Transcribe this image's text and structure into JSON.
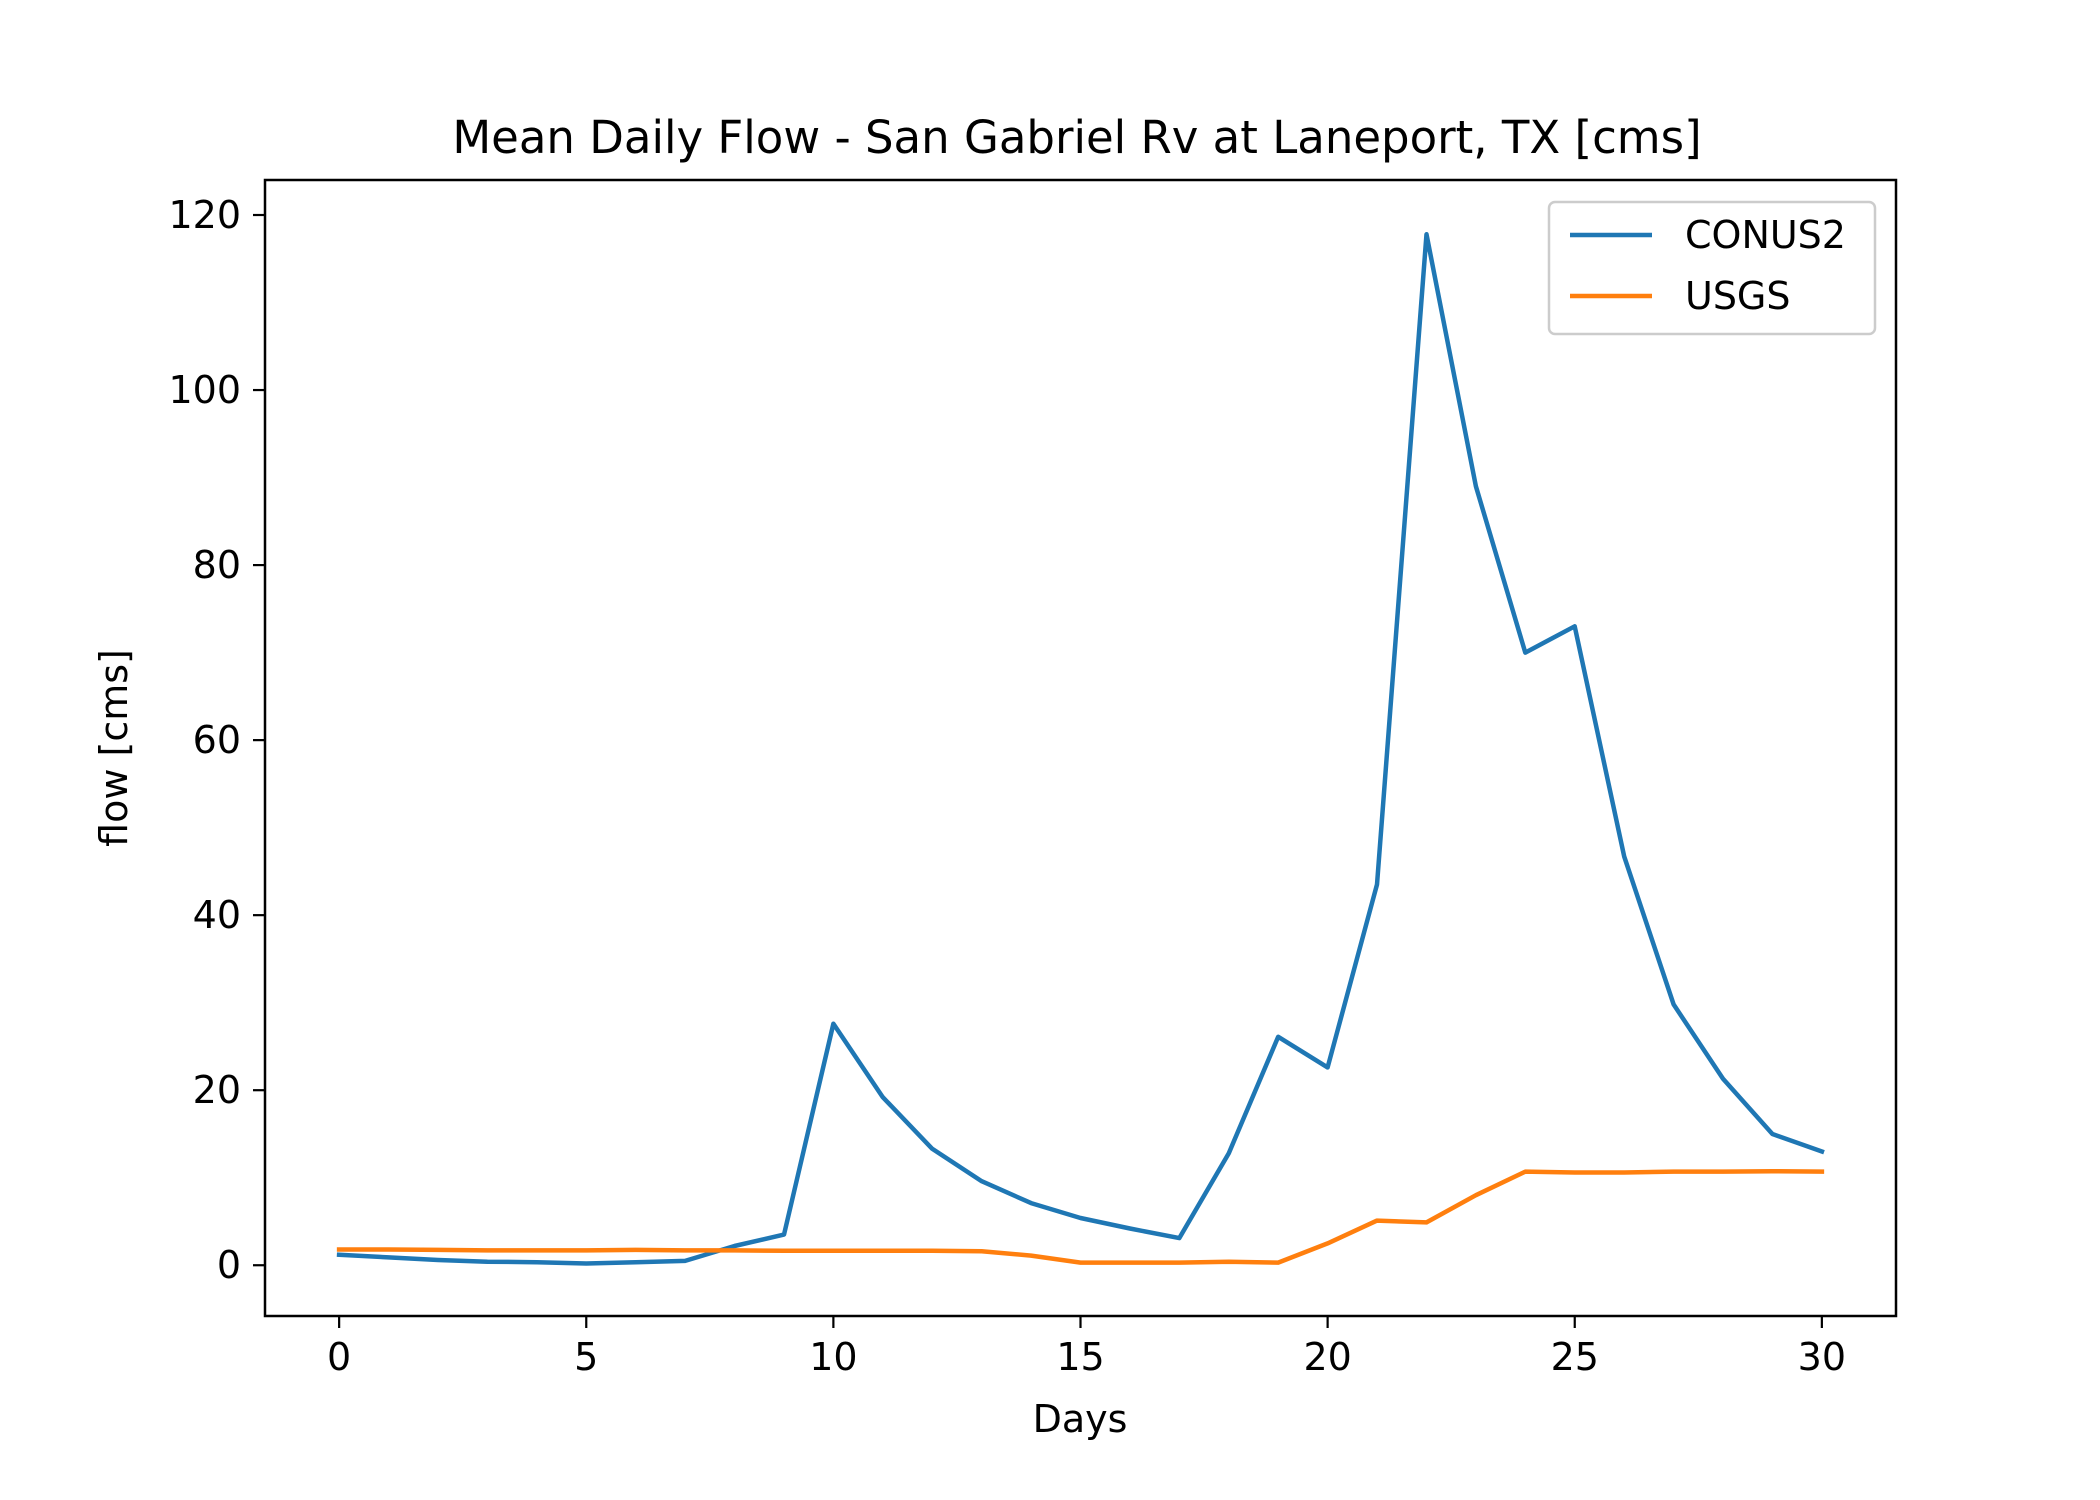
{
  "chart_data": {
    "type": "line",
    "title": "Mean Daily Flow - San Gabriel Rv at Laneport, TX [cms]",
    "xlabel": "Days",
    "ylabel": "flow [cms]",
    "xlim": [
      -1.5,
      31.5
    ],
    "ylim": [
      -5.8,
      124
    ],
    "xticks": [
      0,
      5,
      10,
      15,
      20,
      25,
      30
    ],
    "xtick_labels": [
      "0",
      "5",
      "10",
      "15",
      "20",
      "25",
      "30"
    ],
    "yticks": [
      0,
      20,
      40,
      60,
      80,
      100,
      120
    ],
    "ytick_labels": [
      "0",
      "20",
      "40",
      "60",
      "80",
      "100",
      "120"
    ],
    "grid": false,
    "legend_position": "top-right",
    "x": [
      0,
      1,
      2,
      3,
      4,
      5,
      6,
      7,
      8,
      9,
      10,
      11,
      12,
      13,
      14,
      15,
      16,
      17,
      18,
      19,
      20,
      21,
      22,
      23,
      24,
      25,
      26,
      27,
      28,
      29,
      30
    ],
    "series": [
      {
        "name": "CONUS2",
        "color": "#1f77b4",
        "values": [
          1.2,
          0.9,
          0.6,
          0.4,
          0.35,
          0.2,
          0.35,
          0.5,
          2.2,
          3.5,
          27.6,
          19.2,
          13.3,
          9.6,
          7.1,
          5.4,
          4.2,
          3.1,
          12.8,
          26.1,
          22.6,
          43.5,
          117.8,
          89.0,
          70.0,
          73.0,
          46.7,
          29.8,
          21.3,
          15.0,
          13.0
        ]
      },
      {
        "name": "USGS",
        "color": "#ff7f0e",
        "values": [
          1.8,
          1.8,
          1.75,
          1.7,
          1.7,
          1.7,
          1.75,
          1.7,
          1.7,
          1.65,
          1.65,
          1.65,
          1.65,
          1.6,
          1.1,
          0.3,
          0.3,
          0.3,
          0.4,
          0.3,
          2.5,
          5.1,
          4.9,
          8.0,
          10.7,
          10.6,
          10.6,
          10.7,
          10.7,
          10.75,
          10.7
        ]
      }
    ]
  }
}
